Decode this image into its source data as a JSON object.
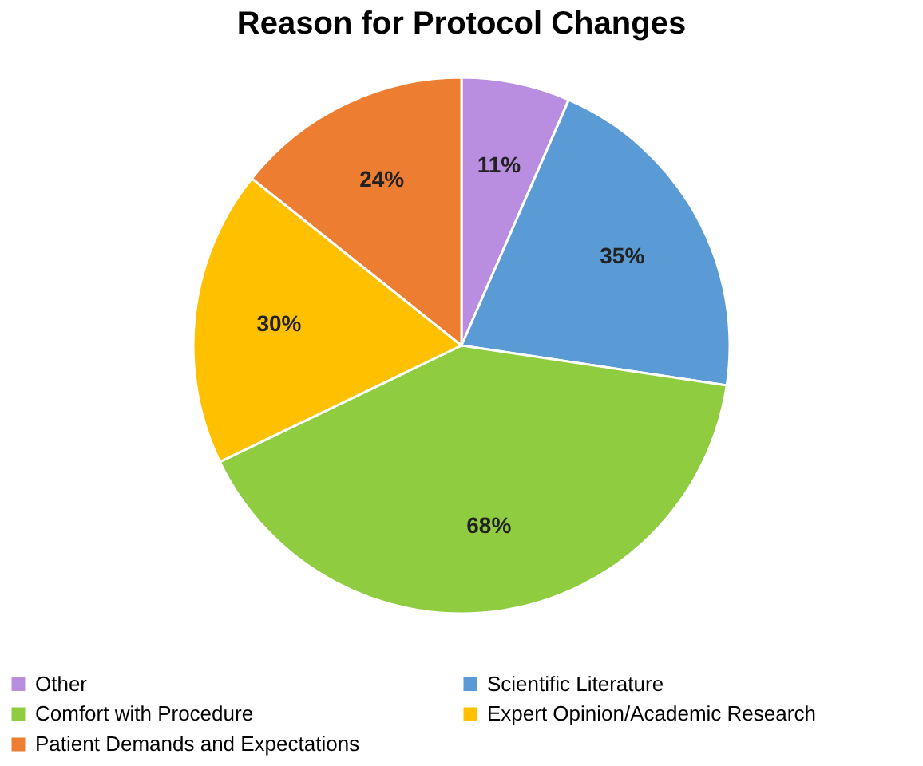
{
  "chart_data": {
    "type": "pie",
    "title": "Reason for Protocol Changes",
    "categories": [
      "Other",
      "Scientific Literature",
      "Comfort with Procedure",
      "Expert Opinion/Academic Research",
      "Patient Demands and Expectations"
    ],
    "values": [
      11,
      35,
      68,
      30,
      24
    ],
    "colors": [
      "#b98ee0",
      "#5b9bd5",
      "#8fcc3f",
      "#ffc000",
      "#ed7d31"
    ],
    "value_labels": [
      "11%",
      "35%",
      "68%",
      "30%",
      "24%"
    ],
    "legend": "bottom"
  }
}
